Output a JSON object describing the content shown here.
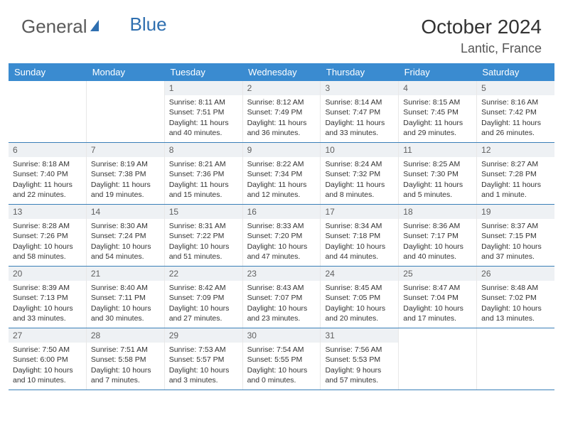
{
  "logo": {
    "text_gray": "General",
    "text_blue": "Blue"
  },
  "header": {
    "month_title": "October 2024",
    "location": "Lantic, France"
  },
  "colors": {
    "header_bg": "#3a8bd0",
    "header_text": "#ffffff",
    "daynum_bg": "#eef1f4",
    "row_border": "#3a7fb8",
    "logo_gray": "#5a5a5a",
    "logo_blue": "#2f6fb0"
  },
  "day_names": [
    "Sunday",
    "Monday",
    "Tuesday",
    "Wednesday",
    "Thursday",
    "Friday",
    "Saturday"
  ],
  "weeks": [
    [
      {
        "n": "",
        "sr": "",
        "ss": "",
        "dl": ""
      },
      {
        "n": "",
        "sr": "",
        "ss": "",
        "dl": ""
      },
      {
        "n": "1",
        "sr": "Sunrise: 8:11 AM",
        "ss": "Sunset: 7:51 PM",
        "dl": "Daylight: 11 hours and 40 minutes."
      },
      {
        "n": "2",
        "sr": "Sunrise: 8:12 AM",
        "ss": "Sunset: 7:49 PM",
        "dl": "Daylight: 11 hours and 36 minutes."
      },
      {
        "n": "3",
        "sr": "Sunrise: 8:14 AM",
        "ss": "Sunset: 7:47 PM",
        "dl": "Daylight: 11 hours and 33 minutes."
      },
      {
        "n": "4",
        "sr": "Sunrise: 8:15 AM",
        "ss": "Sunset: 7:45 PM",
        "dl": "Daylight: 11 hours and 29 minutes."
      },
      {
        "n": "5",
        "sr": "Sunrise: 8:16 AM",
        "ss": "Sunset: 7:42 PM",
        "dl": "Daylight: 11 hours and 26 minutes."
      }
    ],
    [
      {
        "n": "6",
        "sr": "Sunrise: 8:18 AM",
        "ss": "Sunset: 7:40 PM",
        "dl": "Daylight: 11 hours and 22 minutes."
      },
      {
        "n": "7",
        "sr": "Sunrise: 8:19 AM",
        "ss": "Sunset: 7:38 PM",
        "dl": "Daylight: 11 hours and 19 minutes."
      },
      {
        "n": "8",
        "sr": "Sunrise: 8:21 AM",
        "ss": "Sunset: 7:36 PM",
        "dl": "Daylight: 11 hours and 15 minutes."
      },
      {
        "n": "9",
        "sr": "Sunrise: 8:22 AM",
        "ss": "Sunset: 7:34 PM",
        "dl": "Daylight: 11 hours and 12 minutes."
      },
      {
        "n": "10",
        "sr": "Sunrise: 8:24 AM",
        "ss": "Sunset: 7:32 PM",
        "dl": "Daylight: 11 hours and 8 minutes."
      },
      {
        "n": "11",
        "sr": "Sunrise: 8:25 AM",
        "ss": "Sunset: 7:30 PM",
        "dl": "Daylight: 11 hours and 5 minutes."
      },
      {
        "n": "12",
        "sr": "Sunrise: 8:27 AM",
        "ss": "Sunset: 7:28 PM",
        "dl": "Daylight: 11 hours and 1 minute."
      }
    ],
    [
      {
        "n": "13",
        "sr": "Sunrise: 8:28 AM",
        "ss": "Sunset: 7:26 PM",
        "dl": "Daylight: 10 hours and 58 minutes."
      },
      {
        "n": "14",
        "sr": "Sunrise: 8:30 AM",
        "ss": "Sunset: 7:24 PM",
        "dl": "Daylight: 10 hours and 54 minutes."
      },
      {
        "n": "15",
        "sr": "Sunrise: 8:31 AM",
        "ss": "Sunset: 7:22 PM",
        "dl": "Daylight: 10 hours and 51 minutes."
      },
      {
        "n": "16",
        "sr": "Sunrise: 8:33 AM",
        "ss": "Sunset: 7:20 PM",
        "dl": "Daylight: 10 hours and 47 minutes."
      },
      {
        "n": "17",
        "sr": "Sunrise: 8:34 AM",
        "ss": "Sunset: 7:18 PM",
        "dl": "Daylight: 10 hours and 44 minutes."
      },
      {
        "n": "18",
        "sr": "Sunrise: 8:36 AM",
        "ss": "Sunset: 7:17 PM",
        "dl": "Daylight: 10 hours and 40 minutes."
      },
      {
        "n": "19",
        "sr": "Sunrise: 8:37 AM",
        "ss": "Sunset: 7:15 PM",
        "dl": "Daylight: 10 hours and 37 minutes."
      }
    ],
    [
      {
        "n": "20",
        "sr": "Sunrise: 8:39 AM",
        "ss": "Sunset: 7:13 PM",
        "dl": "Daylight: 10 hours and 33 minutes."
      },
      {
        "n": "21",
        "sr": "Sunrise: 8:40 AM",
        "ss": "Sunset: 7:11 PM",
        "dl": "Daylight: 10 hours and 30 minutes."
      },
      {
        "n": "22",
        "sr": "Sunrise: 8:42 AM",
        "ss": "Sunset: 7:09 PM",
        "dl": "Daylight: 10 hours and 27 minutes."
      },
      {
        "n": "23",
        "sr": "Sunrise: 8:43 AM",
        "ss": "Sunset: 7:07 PM",
        "dl": "Daylight: 10 hours and 23 minutes."
      },
      {
        "n": "24",
        "sr": "Sunrise: 8:45 AM",
        "ss": "Sunset: 7:05 PM",
        "dl": "Daylight: 10 hours and 20 minutes."
      },
      {
        "n": "25",
        "sr": "Sunrise: 8:47 AM",
        "ss": "Sunset: 7:04 PM",
        "dl": "Daylight: 10 hours and 17 minutes."
      },
      {
        "n": "26",
        "sr": "Sunrise: 8:48 AM",
        "ss": "Sunset: 7:02 PM",
        "dl": "Daylight: 10 hours and 13 minutes."
      }
    ],
    [
      {
        "n": "27",
        "sr": "Sunrise: 7:50 AM",
        "ss": "Sunset: 6:00 PM",
        "dl": "Daylight: 10 hours and 10 minutes."
      },
      {
        "n": "28",
        "sr": "Sunrise: 7:51 AM",
        "ss": "Sunset: 5:58 PM",
        "dl": "Daylight: 10 hours and 7 minutes."
      },
      {
        "n": "29",
        "sr": "Sunrise: 7:53 AM",
        "ss": "Sunset: 5:57 PM",
        "dl": "Daylight: 10 hours and 3 minutes."
      },
      {
        "n": "30",
        "sr": "Sunrise: 7:54 AM",
        "ss": "Sunset: 5:55 PM",
        "dl": "Daylight: 10 hours and 0 minutes."
      },
      {
        "n": "31",
        "sr": "Sunrise: 7:56 AM",
        "ss": "Sunset: 5:53 PM",
        "dl": "Daylight: 9 hours and 57 minutes."
      },
      {
        "n": "",
        "sr": "",
        "ss": "",
        "dl": ""
      },
      {
        "n": "",
        "sr": "",
        "ss": "",
        "dl": ""
      }
    ]
  ]
}
